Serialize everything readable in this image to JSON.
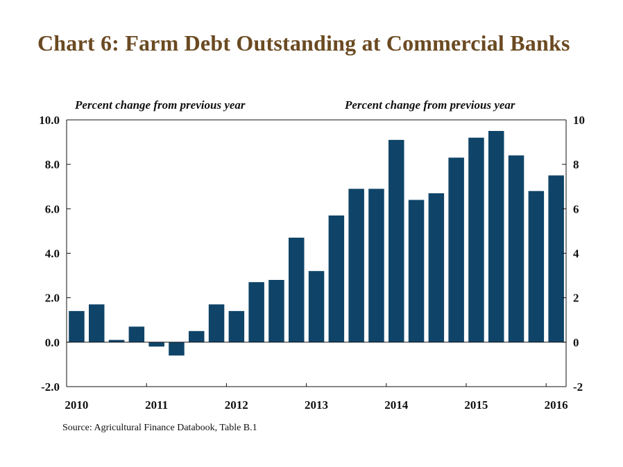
{
  "title": "Chart 6: Farm Debt Outstanding at Commercial Banks",
  "left_axis_note": "Percent change from previous year",
  "right_axis_note": "Percent change from previous year",
  "source": "Source: Agricultural Finance Databook, Table B.1",
  "colors": {
    "bar": "#0f4468",
    "title": "#6b4a22",
    "axis": "#111111"
  },
  "chart_data": {
    "type": "bar",
    "title": "Chart 6: Farm Debt Outstanding at Commercial Banks",
    "xlabel": "",
    "ylabel": "Percent change from previous year",
    "ylim": [
      -2,
      10
    ],
    "left_ticks": [
      "-2.0",
      "0.0",
      "2.0",
      "4.0",
      "6.0",
      "8.0",
      "10.0"
    ],
    "right_ticks": [
      "-2",
      "0",
      "2",
      "4",
      "6",
      "8",
      "10"
    ],
    "tick_values": [
      -2,
      0,
      2,
      4,
      6,
      8,
      10
    ],
    "year_labels": [
      "2010",
      "2011",
      "2012",
      "2013",
      "2014",
      "2015",
      "2016"
    ],
    "categories": [
      "2010 Q1",
      "2010 Q2",
      "2010 Q3",
      "2010 Q4",
      "2011 Q1",
      "2011 Q2",
      "2011 Q3",
      "2011 Q4",
      "2012 Q1",
      "2012 Q2",
      "2012 Q3",
      "2012 Q4",
      "2013 Q1",
      "2013 Q2",
      "2013 Q3",
      "2013 Q4",
      "2014 Q1",
      "2014 Q2",
      "2014 Q3",
      "2014 Q4",
      "2015 Q1",
      "2015 Q2",
      "2015 Q3",
      "2015 Q4",
      "2016 Q1"
    ],
    "values": [
      1.4,
      1.7,
      0.1,
      0.7,
      -0.2,
      -0.6,
      0.5,
      1.7,
      1.4,
      2.7,
      2.8,
      4.7,
      3.2,
      5.7,
      6.9,
      6.9,
      9.1,
      6.4,
      6.7,
      8.3,
      9.2,
      9.5,
      8.4,
      6.8,
      7.5
    ],
    "grid": false,
    "legend": "none"
  }
}
